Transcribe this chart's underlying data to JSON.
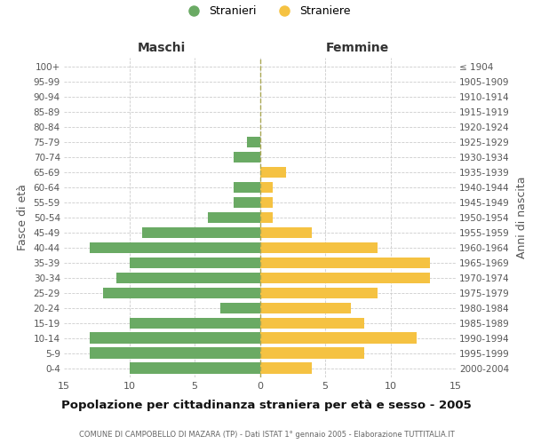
{
  "age_groups": [
    "0-4",
    "5-9",
    "10-14",
    "15-19",
    "20-24",
    "25-29",
    "30-34",
    "35-39",
    "40-44",
    "45-49",
    "50-54",
    "55-59",
    "60-64",
    "65-69",
    "70-74",
    "75-79",
    "80-84",
    "85-89",
    "90-94",
    "95-99",
    "100+"
  ],
  "birth_years": [
    "2000-2004",
    "1995-1999",
    "1990-1994",
    "1985-1989",
    "1980-1984",
    "1975-1979",
    "1970-1974",
    "1965-1969",
    "1960-1964",
    "1955-1959",
    "1950-1954",
    "1945-1949",
    "1940-1944",
    "1935-1939",
    "1930-1934",
    "1925-1929",
    "1920-1924",
    "1915-1919",
    "1910-1914",
    "1905-1909",
    "≤ 1904"
  ],
  "males": [
    10,
    13,
    13,
    10,
    3,
    12,
    11,
    10,
    13,
    9,
    4,
    2,
    2,
    0,
    2,
    1,
    0,
    0,
    0,
    0,
    0
  ],
  "females": [
    4,
    8,
    12,
    8,
    7,
    9,
    13,
    13,
    9,
    4,
    1,
    1,
    1,
    2,
    0,
    0,
    0,
    0,
    0,
    0,
    0
  ],
  "male_color": "#6aaa64",
  "female_color": "#f5c242",
  "male_label": "Stranieri",
  "female_label": "Straniere",
  "left_header": "Maschi",
  "right_header": "Femmine",
  "left_ylabel": "Fasce di età",
  "right_ylabel": "Anni di nascita",
  "xlim": 15,
  "title": "Popolazione per cittadinanza straniera per età e sesso - 2005",
  "subtitle": "COMUNE DI CAMPOBELLO DI MAZARA (TP) - Dati ISTAT 1° gennaio 2005 - Elaborazione TUTTITALIA.IT",
  "grid_color": "#cccccc",
  "background_color": "#ffffff",
  "bar_height": 0.75
}
